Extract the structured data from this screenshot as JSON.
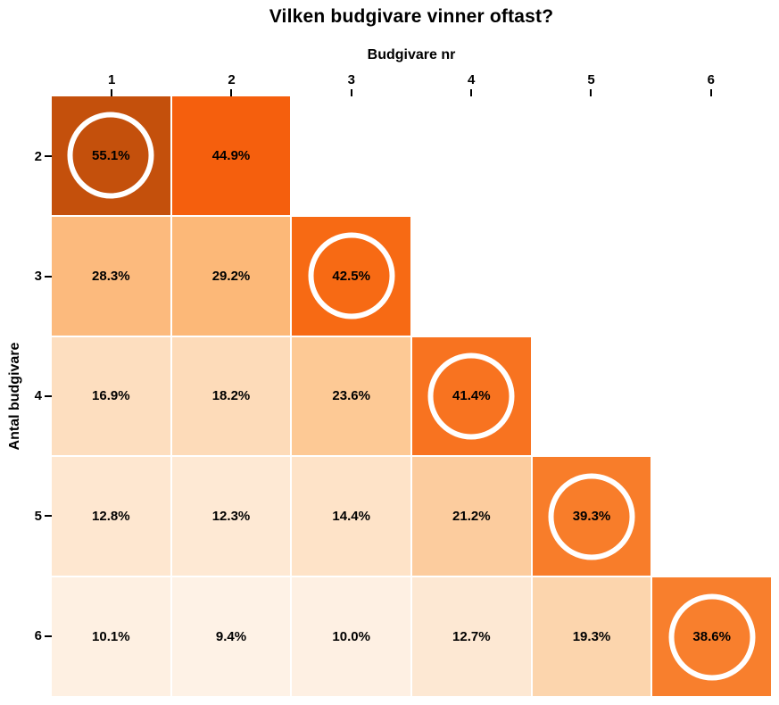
{
  "title": "Vilken budgivare vinner oftast?",
  "colors": {
    "background": "#FFFFFF",
    "text": "#000000",
    "tick": "#000000",
    "highlight_ring": "#FFFFFF"
  },
  "chart_data": {
    "type": "heatmap",
    "title": "Vilken budgivare vinner oftast?",
    "xlabel": "Budgivare nr",
    "ylabel": "Antal budgivare",
    "x_ticks": [
      "1",
      "2",
      "3",
      "4",
      "5",
      "6"
    ],
    "y_ticks": [
      "2",
      "3",
      "4",
      "5",
      "6"
    ],
    "unit": "%",
    "layout": "lower-triangular, x axis on top, white circle marks the maximum value in each row",
    "rows": [
      {
        "antal_budgivare": 2,
        "values": [
          55.1,
          44.9
        ],
        "labels": [
          "55.1%",
          "44.9%"
        ],
        "colors": [
          "#C4500C",
          "#F55F0D"
        ],
        "max_index": 0
      },
      {
        "antal_budgivare": 3,
        "values": [
          28.3,
          29.2,
          42.5
        ],
        "labels": [
          "28.3%",
          "29.2%",
          "42.5%"
        ],
        "colors": [
          "#FCBA7D",
          "#FCB878",
          "#F76A14"
        ],
        "max_index": 2
      },
      {
        "antal_budgivare": 4,
        "values": [
          16.9,
          18.2,
          23.6,
          41.4
        ],
        "labels": [
          "16.9%",
          "18.2%",
          "23.6%",
          "41.4%"
        ],
        "colors": [
          "#FDDEBF",
          "#FDDBB9",
          "#FDC995",
          "#F87320"
        ],
        "max_index": 3
      },
      {
        "antal_budgivare": 5,
        "values": [
          12.8,
          12.3,
          14.4,
          21.2,
          39.3
        ],
        "labels": [
          "12.8%",
          "12.3%",
          "14.4%",
          "21.2%",
          "39.3%"
        ],
        "colors": [
          "#FEE7D0",
          "#FEE9D4",
          "#FEE3C8",
          "#FCCC9E",
          "#F87D2A"
        ],
        "max_index": 4
      },
      {
        "antal_budgivare": 6,
        "values": [
          10.1,
          9.4,
          10.0,
          12.7,
          19.3,
          38.6
        ],
        "labels": [
          "10.1%",
          "9.4%",
          "10.0%",
          "12.7%",
          "19.3%",
          "38.6%"
        ],
        "colors": [
          "#FEF0E2",
          "#FEF2E6",
          "#FEF0E3",
          "#FDE8D3",
          "#FCD5AD",
          "#F87F2D"
        ],
        "max_index": 5
      }
    ]
  }
}
